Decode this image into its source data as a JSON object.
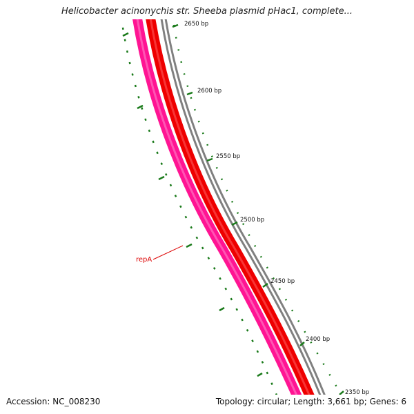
{
  "title": "Helicobacter acinonychis str. Sheeba plasmid pHac1, complete...",
  "footer": {
    "accession": "Accession: NC_008230",
    "summary": "Topology: circular; Length: 3,661 bp; Genes: 6"
  },
  "map": {
    "tick_labels": [
      "2650 bp",
      "2600 bp",
      "2550 bp",
      "2500 bp",
      "2450 bp",
      "2400 bp",
      "2350 bp"
    ],
    "gene_label": "repA"
  },
  "colors": {
    "backbone": "#808080",
    "red_track": "#ee0000",
    "pink_track": "#ff1493",
    "ticks": "#1a7a1a",
    "gene_label": "#dd0000"
  }
}
